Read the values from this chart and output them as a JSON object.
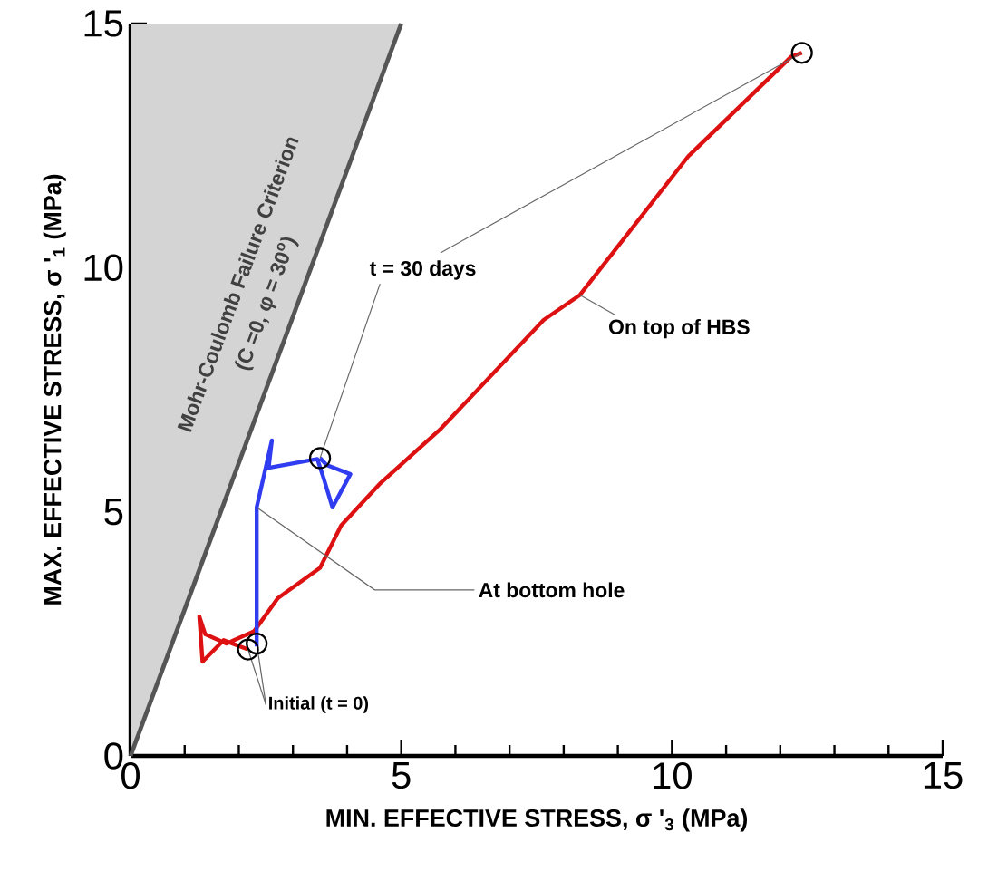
{
  "chart_data": {
    "type": "line",
    "xlabel": "MIN. EFFECTIVE STRESS, σ '$_{3}$ (MPa)",
    "ylabel": "MAX. EFFECTIVE STRESS, σ '$_{1}$ (MPa)",
    "xlim": [
      0,
      15
    ],
    "ylim": [
      0,
      15
    ],
    "xticks": [
      0,
      5,
      10,
      15
    ],
    "yticks": [
      0,
      5,
      10,
      15
    ],
    "series": [
      {
        "type": "area",
        "name": "Mohr-Coulomb Failure Criterion",
        "color": "#555555",
        "x": [
          0,
          5
        ],
        "values": [
          0,
          15
        ]
      },
      {
        "name": "On top of HBS",
        "color": "#dd1111",
        "x": [
          2.17,
          1.72,
          1.33,
          1.27,
          1.38,
          1.77,
          2.28,
          2.72,
          3.5,
          3.89,
          4.62,
          5.73,
          7.63,
          8.3,
          10.3,
          12.2,
          12.4
        ],
        "values": [
          2.18,
          2.37,
          1.93,
          2.86,
          2.49,
          2.3,
          2.55,
          3.23,
          3.85,
          4.72,
          5.59,
          6.7,
          8.93,
          9.44,
          12.28,
          14.32,
          14.4
        ]
      },
      {
        "name": "At bottom hole",
        "color": "#2f3cf0",
        "x": [
          2.33,
          2.33,
          2.61,
          2.55,
          3.45,
          3.56,
          3.73,
          4.06,
          3.62,
          3.5
        ],
        "values": [
          2.24,
          5.09,
          6.46,
          5.9,
          6.08,
          5.71,
          5.09,
          5.77,
          5.96,
          6.1
        ]
      },
      {
        "type": "scatter",
        "marker": "circle",
        "color": "#000000",
        "x": [
          2.17,
          2.33,
          3.5,
          12.4
        ],
        "values": [
          2.18,
          2.3,
          6.1,
          14.4
        ]
      }
    ],
    "annotations": [
      {
        "text": "t = 30 days",
        "x": 3.5,
        "y": 6.1
      },
      {
        "text": "Initial (t = 0)",
        "x": 2.17,
        "y": 2.18
      },
      "(C =0, φ = 30$^{o}$)"
    ]
  }
}
